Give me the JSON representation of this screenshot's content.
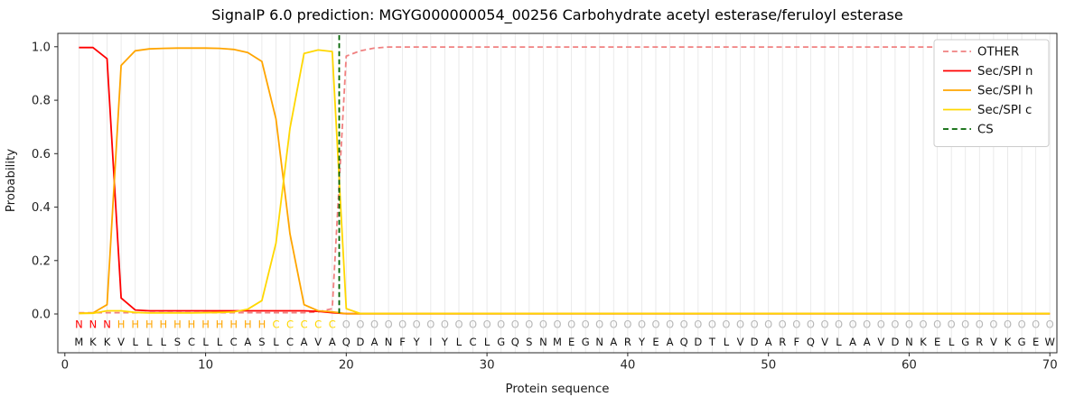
{
  "chart_data": {
    "type": "line",
    "title": "SignalP 6.0 prediction: MGYG000000054_00256 Carbohydrate acetyl esterase/feruloyl esterase",
    "xlabel": "Protein sequence",
    "ylabel": "Probability",
    "xlim": [
      -0.5,
      70.5
    ],
    "ylim": [
      -0.145,
      1.05
    ],
    "xticks": [
      0,
      10,
      20,
      30,
      40,
      50,
      60,
      70
    ],
    "yticks": [
      0.0,
      0.2,
      0.4,
      0.6,
      0.8,
      1.0
    ],
    "grid": "vertical-line-per-residue",
    "legend_position": "upper right",
    "x_start": 1,
    "sequence": "MKKVLLLSCLLCASLCAVAQDANFYIYLCLGQSNMEGNARYEAQDTLVDARFQVLAAVDNKELGRVKGEW",
    "region_labels": "NNNHHHHHHHHHHHCCCCCOOOOOOOOOOOOOOOOOOOOOOOOOOOOOOOOOOOOOOOOOOOOOOOOOO",
    "region_colors": {
      "N": "#ff0000",
      "H": "#ffa500",
      "C": "#ffd700",
      "O": "#b8b8b8"
    },
    "sequence_color": "#111111",
    "series": [
      {
        "name": "OTHER",
        "color": "#f08080",
        "dash": true,
        "values": [
          0.005,
          0.005,
          0.005,
          0.005,
          0.005,
          0.005,
          0.005,
          0.005,
          0.005,
          0.005,
          0.005,
          0.005,
          0.005,
          0.005,
          0.005,
          0.005,
          0.005,
          0.008,
          0.02,
          0.965,
          0.985,
          0.995,
          0.999,
          0.999,
          0.999,
          0.999,
          0.999,
          0.999,
          0.999,
          0.999,
          0.999,
          0.999,
          0.999,
          0.999,
          0.999,
          0.999,
          0.999,
          0.999,
          0.999,
          0.999,
          0.999,
          0.999,
          0.999,
          0.999,
          0.999,
          0.999,
          0.999,
          0.999,
          0.999,
          0.999,
          0.999,
          0.999,
          0.999,
          0.999,
          0.999,
          0.999,
          0.999,
          0.999,
          0.999,
          0.999,
          0.999,
          0.999,
          0.999,
          0.999,
          0.999,
          0.999,
          0.999,
          0.999,
          0.999,
          0.999
        ]
      },
      {
        "name": "Sec/SPI n",
        "color": "#ff0000",
        "dash": false,
        "values": [
          0.997,
          0.997,
          0.955,
          0.06,
          0.015,
          0.012,
          0.012,
          0.012,
          0.012,
          0.012,
          0.012,
          0.012,
          0.012,
          0.012,
          0.012,
          0.012,
          0.012,
          0.01,
          0.005,
          0.001,
          0.001,
          0.001,
          0.001,
          0.001,
          0.001,
          0.001,
          0.001,
          0.001,
          0.001,
          0.001,
          0.001,
          0.001,
          0.001,
          0.001,
          0.001,
          0.001,
          0.001,
          0.001,
          0.001,
          0.001,
          0.001,
          0.001,
          0.001,
          0.001,
          0.001,
          0.001,
          0.001,
          0.001,
          0.001,
          0.001,
          0.001,
          0.001,
          0.001,
          0.001,
          0.001,
          0.001,
          0.001,
          0.001,
          0.001,
          0.001,
          0.001,
          0.001,
          0.001,
          0.001,
          0.001,
          0.001,
          0.001,
          0.001,
          0.001,
          0.001
        ]
      },
      {
        "name": "Sec/SPI h",
        "color": "#ffa500",
        "dash": false,
        "values": [
          0.003,
          0.004,
          0.035,
          0.93,
          0.985,
          0.992,
          0.994,
          0.995,
          0.995,
          0.995,
          0.994,
          0.99,
          0.978,
          0.945,
          0.73,
          0.3,
          0.035,
          0.012,
          0.008,
          0.001,
          0.001,
          0.001,
          0.001,
          0.001,
          0.001,
          0.001,
          0.001,
          0.001,
          0.001,
          0.001,
          0.001,
          0.001,
          0.001,
          0.001,
          0.001,
          0.001,
          0.001,
          0.001,
          0.001,
          0.001,
          0.001,
          0.001,
          0.001,
          0.001,
          0.001,
          0.001,
          0.001,
          0.001,
          0.001,
          0.001,
          0.001,
          0.001,
          0.001,
          0.001,
          0.001,
          0.001,
          0.001,
          0.001,
          0.001,
          0.001,
          0.001,
          0.001,
          0.001,
          0.001,
          0.001,
          0.001,
          0.001,
          0.001,
          0.001,
          0.001
        ]
      },
      {
        "name": "Sec/SPI c",
        "color": "#ffd700",
        "dash": false,
        "values": [
          0.002,
          0.003,
          0.012,
          0.012,
          0.006,
          0.004,
          0.004,
          0.004,
          0.004,
          0.005,
          0.006,
          0.008,
          0.018,
          0.05,
          0.265,
          0.695,
          0.975,
          0.988,
          0.982,
          0.02,
          0.002,
          0.002,
          0.002,
          0.002,
          0.002,
          0.002,
          0.002,
          0.002,
          0.002,
          0.002,
          0.002,
          0.002,
          0.002,
          0.002,
          0.002,
          0.002,
          0.002,
          0.002,
          0.002,
          0.002,
          0.002,
          0.002,
          0.002,
          0.002,
          0.002,
          0.002,
          0.002,
          0.002,
          0.002,
          0.002,
          0.002,
          0.002,
          0.002,
          0.002,
          0.002,
          0.002,
          0.002,
          0.002,
          0.002,
          0.002,
          0.002,
          0.002,
          0.002,
          0.002,
          0.002,
          0.002,
          0.002,
          0.002,
          0.002,
          0.002
        ]
      }
    ],
    "cs_marker": {
      "label": "CS",
      "x": 19.5,
      "color": "#006400",
      "dash": true
    }
  }
}
